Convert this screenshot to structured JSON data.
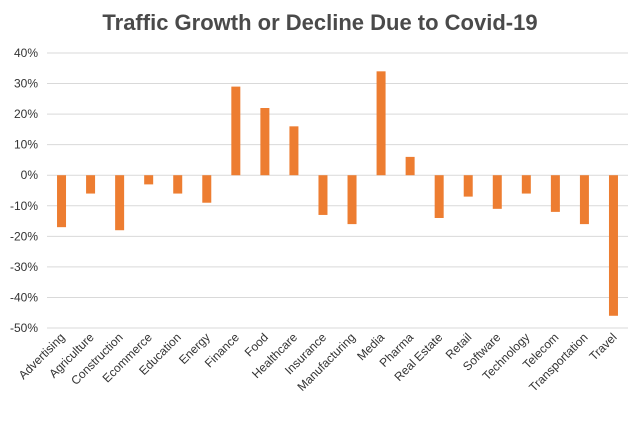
{
  "chart_data": {
    "type": "bar",
    "title": "Traffic Growth or Decline Due to Covid-19",
    "xlabel": "",
    "ylabel": "",
    "ylim": [
      -50,
      40
    ],
    "yticks": [
      40,
      30,
      20,
      10,
      0,
      -10,
      -20,
      -30,
      -40,
      -50
    ],
    "ytick_labels": [
      "40%",
      "30%",
      "20%",
      "10%",
      "0%",
      "-10%",
      "-20%",
      "-30%",
      "-40%",
      "-50%"
    ],
    "unit": "%",
    "grid": true,
    "legend": "none",
    "bar_color": "#ED7D31",
    "categories": [
      "Advertising",
      "Agriculture",
      "Construction",
      "Ecommerce",
      "Education",
      "Energy",
      "Finance",
      "Food",
      "Healthcare",
      "Insurance",
      "Manufacturing",
      "Media",
      "Pharma",
      "Real Estate",
      "Retail",
      "Software",
      "Technology",
      "Telecom",
      "Transportation",
      "Travel"
    ],
    "values": [
      -17,
      -6,
      -18,
      -3,
      -6,
      -9,
      29,
      22,
      16,
      -13,
      -16,
      34,
      6,
      -14,
      -7,
      -11,
      -6,
      -12,
      -16,
      -46
    ]
  }
}
